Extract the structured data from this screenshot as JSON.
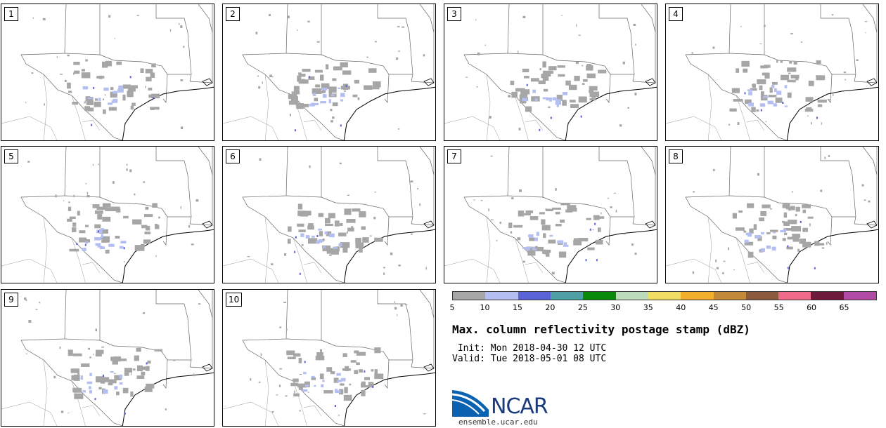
{
  "panels": [
    {
      "label": "1"
    },
    {
      "label": "2"
    },
    {
      "label": "3"
    },
    {
      "label": "4"
    },
    {
      "label": "5"
    },
    {
      "label": "6"
    },
    {
      "label": "7"
    },
    {
      "label": "8"
    },
    {
      "label": "9"
    },
    {
      "label": "10"
    }
  ],
  "colorbar": {
    "colors": [
      "#a6a6a6",
      "#b4bef0",
      "#5a64d8",
      "#4e9fa6",
      "#0a8a0a",
      "#bcdcbc",
      "#f0de64",
      "#f0b02c",
      "#c08a3a",
      "#8c5a3c",
      "#f06a8c",
      "#6e1a3c",
      "#b04ca6"
    ],
    "ticks": [
      "5",
      "10",
      "15",
      "20",
      "25",
      "30",
      "35",
      "40",
      "45",
      "50",
      "55",
      "60",
      "65"
    ]
  },
  "title": "Max. column reflectivity postage stamp (dBZ)",
  "init": " Init: Mon 2018-04-30 12 UTC",
  "valid": "Valid: Tue 2018-05-01 08 UTC",
  "logo_text": "NCAR",
  "site": "ensemble.ucar.edu",
  "colors": {
    "echo_light": "#a6a6a6",
    "echo_blue": "#b4bef0",
    "echo_dark": "#5a64d8"
  }
}
